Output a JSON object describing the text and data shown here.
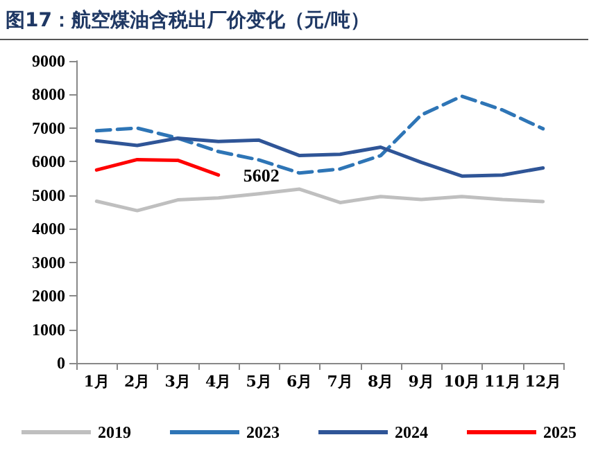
{
  "chart_data": {
    "type": "line",
    "title": "图17：航空煤油含税出厂价变化（元/吨）",
    "categories": [
      "1月",
      "2月",
      "3月",
      "4月",
      "5月",
      "6月",
      "7月",
      "8月",
      "9月",
      "10月",
      "11月",
      "12月"
    ],
    "series": [
      {
        "name": "2019",
        "color": "#bfbfbf",
        "values": [
          4820,
          4540,
          4860,
          4920,
          5040,
          5180,
          4780,
          4960,
          4870,
          4960,
          4870,
          4810
        ]
      },
      {
        "name": "2023",
        "color": "#2e75b6",
        "line_style": "dashed",
        "values": [
          6920,
          7000,
          6700,
          6300,
          6050,
          5660,
          5780,
          6180,
          7390,
          7950,
          7540,
          6980
        ]
      },
      {
        "name": "2024",
        "color": "#2f5597",
        "values": [
          6620,
          6480,
          6700,
          6600,
          6640,
          6180,
          6220,
          6430,
          5980,
          5570,
          5600,
          5810
        ]
      },
      {
        "name": "2025",
        "color": "#ff0000",
        "values": [
          5750,
          6060,
          6040,
          5602,
          null,
          null,
          null,
          null,
          null,
          null,
          null,
          null
        ],
        "value_labels": [
          null,
          null,
          null,
          "5602",
          null,
          null,
          null,
          null,
          null,
          null,
          null,
          null
        ]
      }
    ],
    "ylim": [
      0,
      9000
    ],
    "yticks": [
      0,
      1000,
      2000,
      3000,
      4000,
      5000,
      6000,
      7000,
      8000,
      9000
    ],
    "grid": false,
    "legend": "bottom",
    "marker": "none"
  }
}
